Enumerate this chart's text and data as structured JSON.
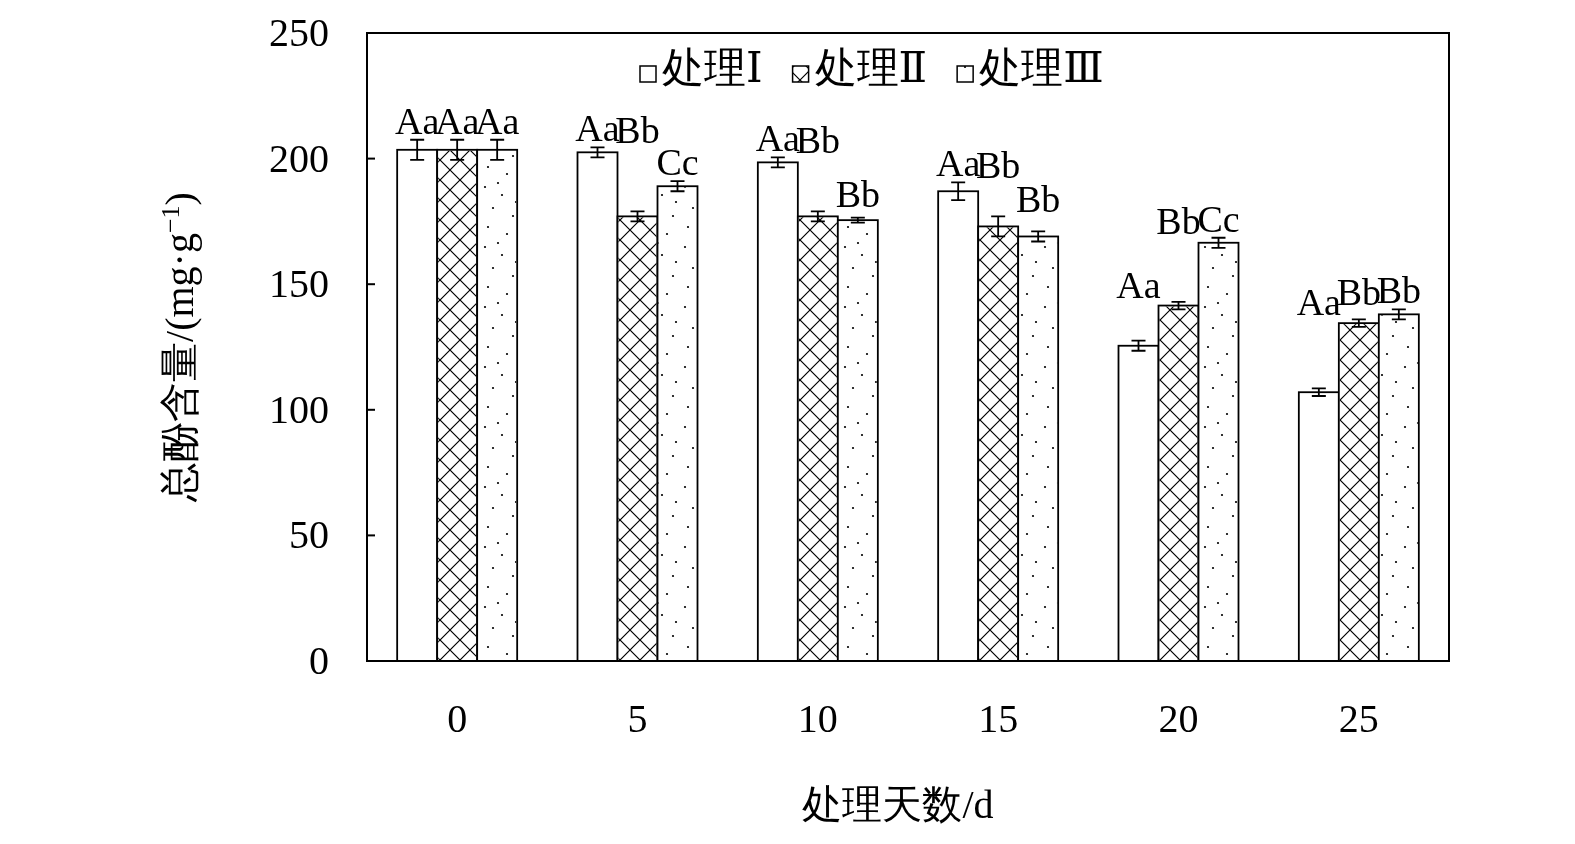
{
  "chart_data": {
    "type": "bar",
    "xlabel": "处理天数/d",
    "ylabel": "总酚含量/(mg·g$^{−1}$)",
    "categories": [
      "0",
      "5",
      "10",
      "15",
      "20",
      "25"
    ],
    "ylim": [
      0,
      250
    ],
    "yticks": [
      0,
      50,
      100,
      150,
      200,
      250
    ],
    "grid": false,
    "legend": "top",
    "series": [
      {
        "name": "处理Ⅰ",
        "color": "#ffffff",
        "values": [
          203.5,
          202.5,
          198.5,
          187,
          125.5,
          107
        ],
        "errors": [
          4,
          2,
          2,
          3.5,
          2,
          1.5
        ],
        "value_labels": [
          "Aa",
          "Aa",
          "Aa",
          "Aa",
          "Aa",
          "Aa"
        ]
      },
      {
        "name": "处理Ⅱ",
        "color": "#ffffff",
        "values": [
          203.5,
          177,
          177,
          173,
          141.5,
          134.5
        ],
        "errors": [
          4,
          2,
          2,
          4,
          1.5,
          1.5
        ],
        "value_labels": [
          "Aa",
          "Bb",
          "Bb",
          "Bb",
          "Bb",
          "Bb"
        ]
      },
      {
        "name": "处理Ⅲ",
        "color": "#ffffff",
        "values": [
          203.5,
          189,
          175.5,
          169,
          166.5,
          138
        ],
        "errors": [
          4,
          2,
          1,
          2,
          2,
          2
        ],
        "value_labels": [
          "Aa",
          "Cc",
          "Bb",
          "Bb",
          "Cc",
          "Bb"
        ]
      }
    ]
  }
}
